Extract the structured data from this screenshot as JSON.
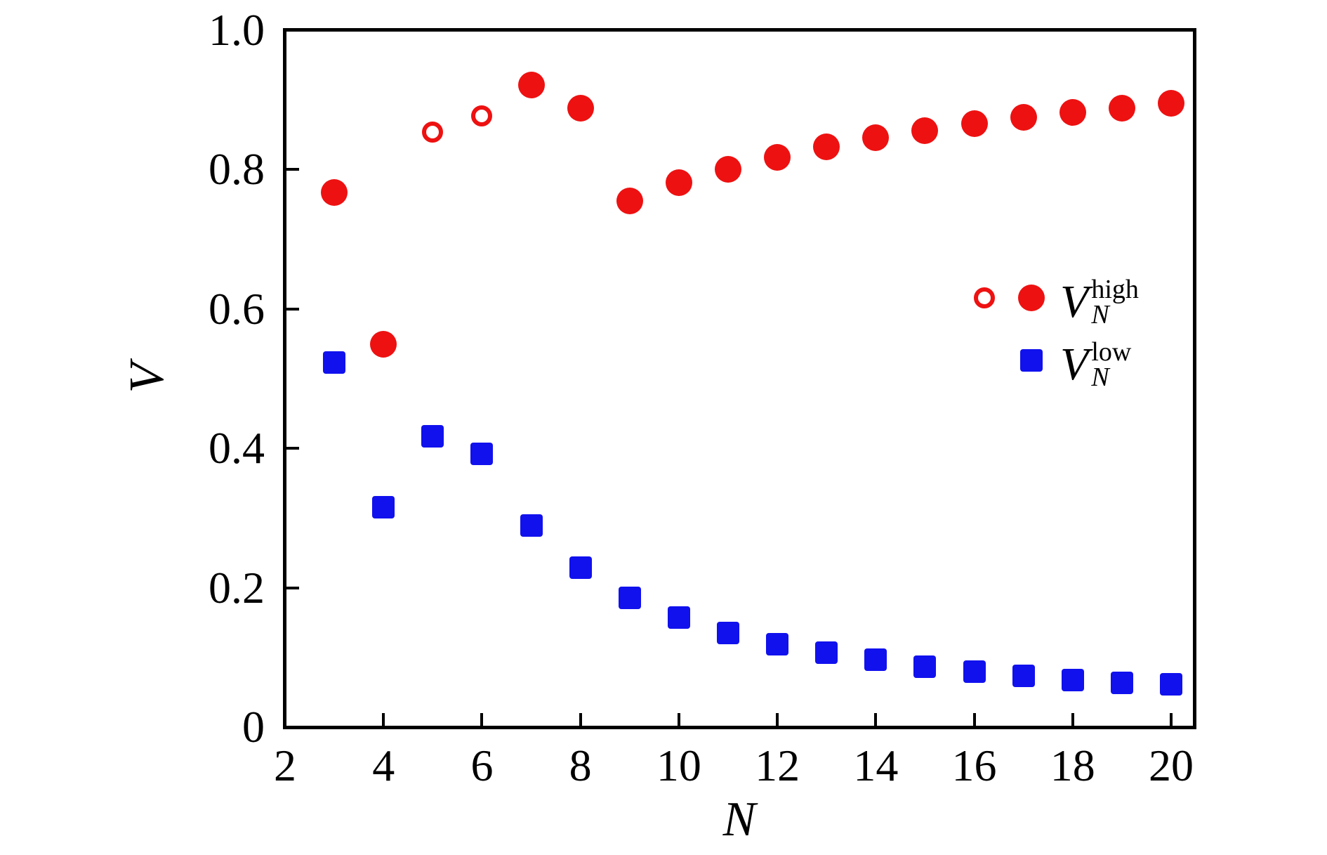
{
  "figure": {
    "background": "#ffffff",
    "axis_color": "#000000",
    "high_color": "#ee1111",
    "low_color": "#1111ee"
  },
  "chart_data": {
    "type": "scatter",
    "title": "",
    "xlabel": "N",
    "ylabel": "V",
    "xlim": [
      2,
      20.5
    ],
    "ylim": [
      0,
      1.0
    ],
    "grid": false,
    "legend_position": "center-right",
    "x_ticks": [
      2,
      4,
      6,
      8,
      10,
      12,
      14,
      16,
      18,
      20
    ],
    "x_tick_labels": [
      "2",
      "4",
      "6",
      "8",
      "10",
      "12",
      "14",
      "16",
      "18",
      "20"
    ],
    "y_ticks": [
      0,
      0.2,
      0.4,
      0.6,
      0.8,
      1.0
    ],
    "y_tick_labels": [
      "0",
      "0.2",
      "0.4",
      "0.6",
      "0.8",
      "1.0"
    ],
    "series": [
      {
        "name": "V_N_high_filled",
        "legend_label": "V_N^high",
        "marker": "circle",
        "color": "#ee1111",
        "x": [
          3,
          4,
          7,
          8,
          9,
          10,
          11,
          12,
          13,
          14,
          15,
          16,
          17,
          18,
          19,
          20
        ],
        "y": [
          0.767,
          0.549,
          0.921,
          0.888,
          0.755,
          0.781,
          0.8,
          0.818,
          0.833,
          0.846,
          0.856,
          0.866,
          0.875,
          0.882,
          0.888,
          0.895
        ]
      },
      {
        "name": "V_N_high_open",
        "legend_label": "V_N^high",
        "marker": "circle-open",
        "color": "#ee1111",
        "x": [
          5,
          6
        ],
        "y": [
          0.854,
          0.877
        ]
      },
      {
        "name": "V_N_low",
        "legend_label": "V_N^low",
        "marker": "square",
        "color": "#1111ee",
        "x": [
          3,
          4,
          5,
          6,
          7,
          8,
          9,
          10,
          11,
          12,
          13,
          14,
          15,
          16,
          17,
          18,
          19,
          20
        ],
        "y": [
          0.523,
          0.316,
          0.417,
          0.392,
          0.289,
          0.229,
          0.185,
          0.157,
          0.135,
          0.119,
          0.107,
          0.097,
          0.087,
          0.08,
          0.074,
          0.068,
          0.064,
          0.061
        ]
      }
    ]
  },
  "legend": {
    "high": {
      "base": "V",
      "sub": "N",
      "sup": "high"
    },
    "low": {
      "base": "V",
      "sub": "N",
      "sup": "low"
    }
  }
}
